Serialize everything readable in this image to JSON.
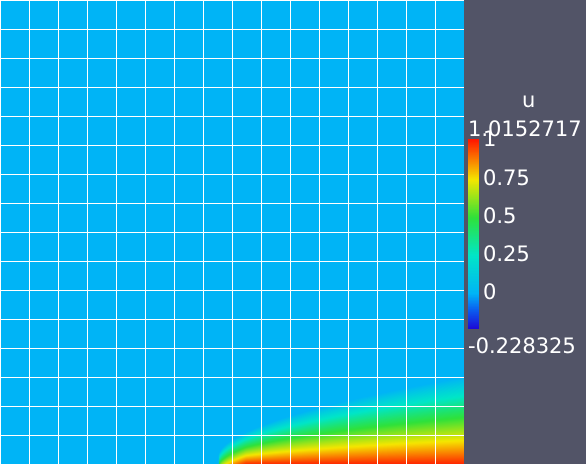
{
  "scalar_bar": {
    "title": "u",
    "range_max_label": "1.0152717",
    "range_min_label": "-0.228325",
    "range_min": -0.228325,
    "range_max": 1.0152717,
    "ticks": [
      {
        "value": 1,
        "label": "1"
      },
      {
        "value": 0.75,
        "label": "0.75"
      },
      {
        "value": 0.5,
        "label": "0.5"
      },
      {
        "value": 0.25,
        "label": "0.25"
      },
      {
        "value": 0,
        "label": "0"
      }
    ],
    "colormap": [
      {
        "value": -0.228325,
        "color": "#1c0ad8"
      },
      {
        "value": -0.1,
        "color": "#0a63f0"
      },
      {
        "value": 0.0,
        "color": "#00b4f6"
      },
      {
        "value": 0.25,
        "color": "#00e6c8"
      },
      {
        "value": 0.5,
        "color": "#2fe13a"
      },
      {
        "value": 0.75,
        "color": "#f5e600"
      },
      {
        "value": 1.0152717,
        "color": "#ff1500"
      }
    ]
  },
  "view": {
    "background_color": "#525467",
    "grid_color": "#ffffff",
    "mesh_cells": 16
  }
}
